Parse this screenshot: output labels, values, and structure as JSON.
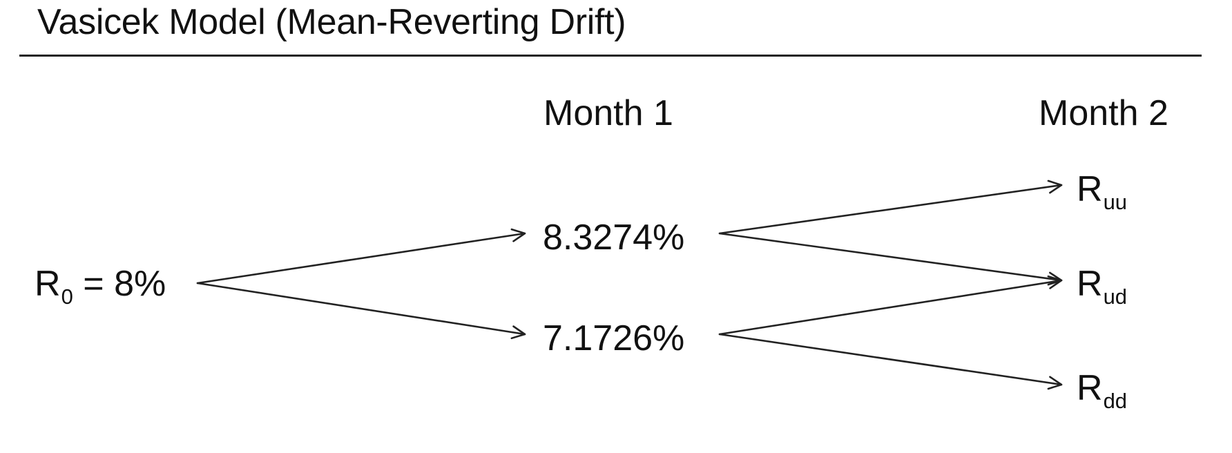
{
  "title": "Vasicek Model (Mean-Reverting Drift)",
  "columns": {
    "month1": "Month 1",
    "month2": "Month 2"
  },
  "nodes": {
    "root": {
      "main": "R",
      "sub": "0",
      "rest": " = 8%"
    },
    "up": "8.3274%",
    "down": "7.1726%",
    "uu": {
      "main": "R",
      "sub": "uu"
    },
    "ud": {
      "main": "R",
      "sub": "ud"
    },
    "dd": {
      "main": "R",
      "sub": "dd"
    }
  },
  "edges": [
    {
      "from": "root",
      "to": "up"
    },
    {
      "from": "root",
      "to": "down"
    },
    {
      "from": "up",
      "to": "uu"
    },
    {
      "from": "up",
      "to": "ud"
    },
    {
      "from": "down",
      "to": "ud"
    },
    {
      "from": "down",
      "to": "dd"
    }
  ]
}
